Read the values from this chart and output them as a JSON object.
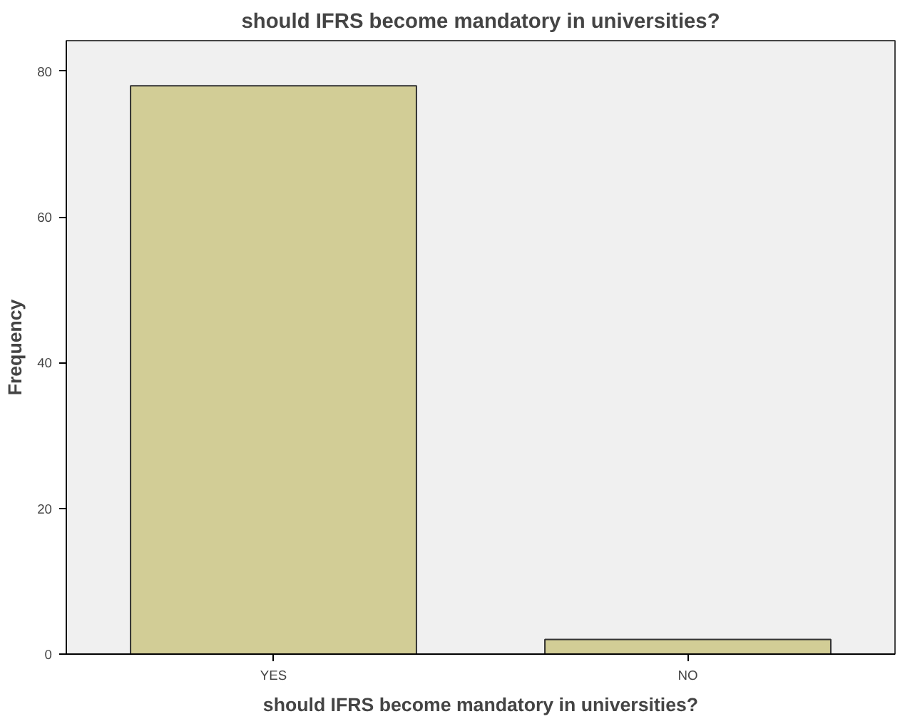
{
  "chart_data": {
    "type": "bar",
    "title": "should IFRS become mandatory in universities?",
    "xlabel": "should IFRS become mandatory in universities?",
    "ylabel": "Frequency",
    "categories": [
      "YES",
      "NO"
    ],
    "values": [
      78,
      2
    ],
    "color": "#d2cd96",
    "ylim": [
      0,
      84.2
    ],
    "yticks": [
      0,
      20,
      40,
      60,
      80
    ],
    "grid": false
  }
}
